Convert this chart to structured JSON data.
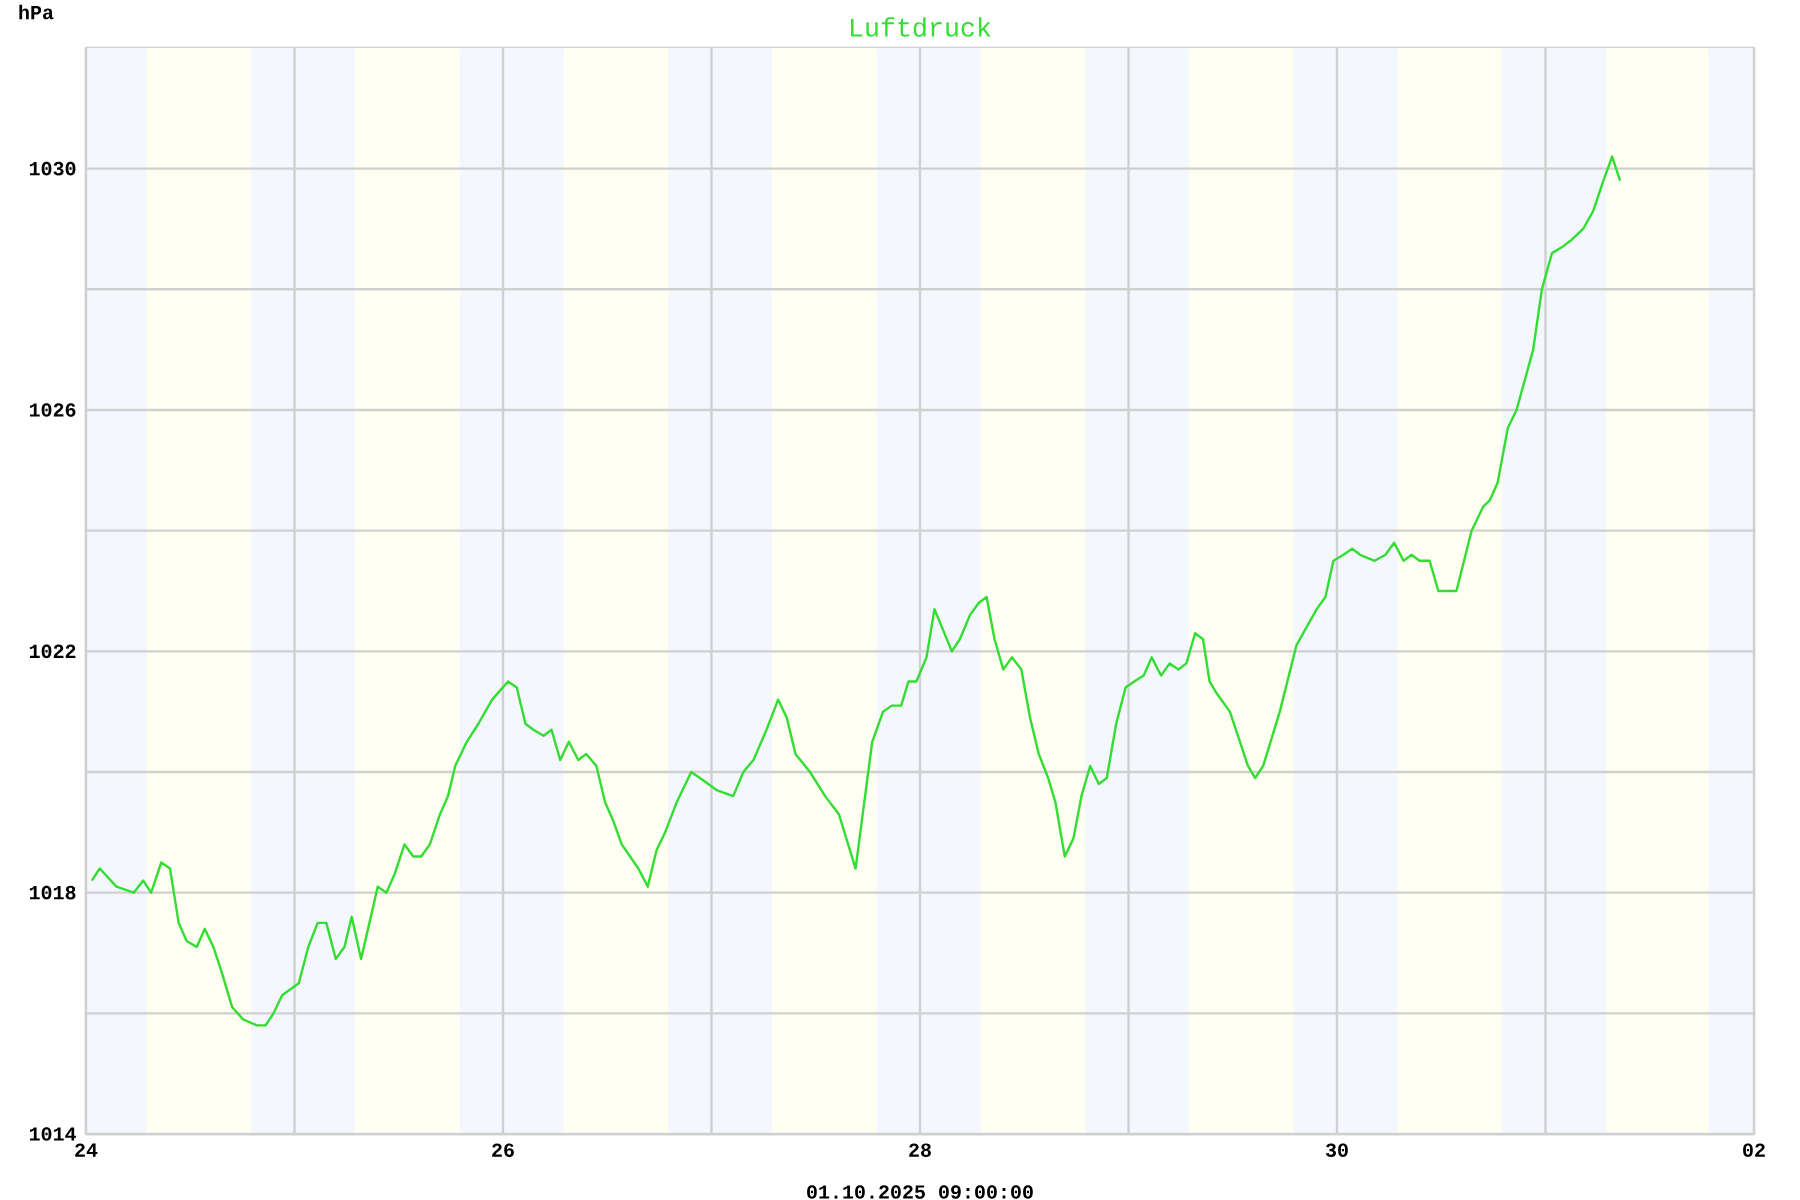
{
  "chart_data": {
    "type": "line",
    "title": "Luftdruck",
    "ylabel": "hPa",
    "color": "#33dd33",
    "line_style": "solid",
    "grid": true,
    "annotations": [
      "01.10.2025 09:00:00"
    ],
    "xlim": [
      "2025-09-24T00:00",
      "2025-10-02T00:00"
    ],
    "ylim": [
      1014,
      1032
    ],
    "xticks": [
      {
        "value": "2025-09-24",
        "label": "24"
      },
      {
        "value": "2025-09-25",
        "label": null
      },
      {
        "value": "2025-09-26",
        "label": "26"
      },
      {
        "value": "2025-09-27",
        "label": null
      },
      {
        "value": "2025-09-28",
        "label": "28"
      },
      {
        "value": "2025-09-29",
        "label": null
      },
      {
        "value": "2025-09-30",
        "label": "30"
      },
      {
        "value": "2025-10-01",
        "label": null
      },
      {
        "value": "2025-10-02",
        "label": "02"
      }
    ],
    "yticks": [
      1014,
      {
        "value": 1016,
        "label": null
      },
      1018,
      {
        "value": 1020,
        "label": null
      },
      1022,
      {
        "value": 1024,
        "label": null
      },
      1026,
      {
        "value": 1028,
        "label": null
      },
      1030
    ],
    "bands": [
      {
        "axis": "x",
        "from": "2025-09-24T00:00",
        "to": "2025-09-24T07:00",
        "color": "#f5f7ff"
      },
      {
        "axis": "x",
        "from": "2025-09-24T07:00",
        "to": "2025-09-24T19:00",
        "color": "#fffff2"
      },
      {
        "axis": "x",
        "from": "2025-09-24T19:00",
        "to": "2025-09-25T07:00",
        "color": "#f5f7ff"
      },
      {
        "axis": "x",
        "from": "2025-09-25T07:00",
        "to": "2025-09-25T19:00",
        "color": "#fffff2"
      },
      {
        "axis": "x",
        "from": "2025-09-25T19:00",
        "to": "2025-09-26T07:00",
        "color": "#f5f7ff"
      },
      {
        "axis": "x",
        "from": "2025-09-26T07:00",
        "to": "2025-09-26T19:00",
        "color": "#fffff2"
      },
      {
        "axis": "x",
        "from": "2025-09-26T19:00",
        "to": "2025-09-27T07:00",
        "color": "#f5f7ff"
      },
      {
        "axis": "x",
        "from": "2025-09-27T07:00",
        "to": "2025-09-27T19:00",
        "color": "#fffff2"
      },
      {
        "axis": "x",
        "from": "2025-09-27T19:00",
        "to": "2025-09-28T07:00",
        "color": "#f5f7ff"
      },
      {
        "axis": "x",
        "from": "2025-09-28T07:00",
        "to": "2025-09-28T19:00",
        "color": "#fffff2"
      },
      {
        "axis": "x",
        "from": "2025-09-28T19:00",
        "to": "2025-09-29T07:00",
        "color": "#f5f7ff"
      },
      {
        "axis": "x",
        "from": "2025-09-29T07:00",
        "to": "2025-09-29T19:00",
        "color": "#fffff2"
      },
      {
        "axis": "x",
        "from": "2025-09-29T19:00",
        "to": "2025-09-30T07:00",
        "color": "#f5f7ff"
      },
      {
        "axis": "x",
        "from": "2025-09-30T07:00",
        "to": "2025-09-30T19:00",
        "color": "#fffff2"
      },
      {
        "axis": "x",
        "from": "2025-09-30T19:00",
        "to": "2025-10-01T07:00",
        "color": "#f5f7ff"
      },
      {
        "axis": "x",
        "from": "2025-10-01T07:00",
        "to": "2025-10-01T18:45",
        "color": "#fffff2"
      },
      {
        "axis": "x",
        "from": "2025-10-01T18:45",
        "to": "2025-10-02T00:00",
        "color": "#f5f7ff"
      }
    ],
    "x": [
      "2025-09-24T00:40",
      "2025-09-24T01:35",
      "2025-09-24T03:30",
      "2025-09-24T05:30",
      "2025-09-24T06:35",
      "2025-09-24T07:30",
      "2025-09-24T08:40",
      "2025-09-24T09:40",
      "2025-09-24T10:40",
      "2025-09-24T11:35",
      "2025-09-24T12:45",
      "2025-09-24T13:40",
      "2025-09-24T14:40",
      "2025-09-24T15:35",
      "2025-09-24T16:50",
      "2025-09-24T18:05",
      "2025-09-24T19:40",
      "2025-09-24T20:40",
      "2025-09-24T21:35",
      "2025-09-24T22:35",
      "2025-09-25T00:30",
      "2025-09-25T01:35",
      "2025-09-25T02:40",
      "2025-09-25T03:40",
      "2025-09-25T04:45",
      "2025-09-25T05:45",
      "2025-09-25T06:35",
      "2025-09-25T07:40",
      "2025-09-25T09:35",
      "2025-09-25T10:35",
      "2025-09-25T11:30",
      "2025-09-25T12:40",
      "2025-09-25T13:40",
      "2025-09-25T14:35",
      "2025-09-25T15:35",
      "2025-09-25T16:45",
      "2025-09-25T17:40",
      "2025-09-25T18:30",
      "2025-09-25T19:50",
      "2025-09-25T21:10",
      "2025-09-25T22:45",
      "2025-09-26T00:35",
      "2025-09-26T01:35",
      "2025-09-26T02:35",
      "2025-09-26T03:30",
      "2025-09-26T04:40",
      "2025-09-26T05:35",
      "2025-09-26T06:35",
      "2025-09-26T07:35",
      "2025-09-26T08:40",
      "2025-09-26T09:35",
      "2025-09-26T10:45",
      "2025-09-26T11:45",
      "2025-09-26T12:40",
      "2025-09-26T13:40",
      "2025-09-26T15:35",
      "2025-09-26T16:40",
      "2025-09-26T17:40",
      "2025-09-26T18:40",
      "2025-09-26T20:00",
      "2025-09-26T21:40",
      "2025-09-26T22:40",
      "2025-09-27T00:35",
      "2025-09-27T02:30",
      "2025-09-27T03:40",
      "2025-09-27T04:50",
      "2025-09-27T06:20",
      "2025-09-27T07:40",
      "2025-09-27T08:40",
      "2025-09-27T09:40",
      "2025-09-27T11:20",
      "2025-09-27T13:05",
      "2025-09-27T14:40",
      "2025-09-27T16:35",
      "2025-09-27T18:30",
      "2025-09-27T19:45",
      "2025-09-27T20:45",
      "2025-09-27T21:50",
      "2025-09-27T22:40",
      "2025-09-27T23:35",
      "2025-09-28T00:45",
      "2025-09-28T01:40",
      "2025-09-28T03:40",
      "2025-09-28T04:35",
      "2025-09-28T05:45",
      "2025-09-28T06:45",
      "2025-09-28T07:40",
      "2025-09-28T08:35",
      "2025-09-28T09:35",
      "2025-09-28T10:35",
      "2025-09-28T11:40",
      "2025-09-28T12:40",
      "2025-09-28T13:40",
      "2025-09-28T14:45",
      "2025-09-28T15:35",
      "2025-09-28T16:40",
      "2025-09-28T17:40",
      "2025-09-28T18:35",
      "2025-09-28T19:35",
      "2025-09-28T20:35",
      "2025-09-28T21:30",
      "2025-09-28T22:35",
      "2025-09-28T23:40",
      "2025-09-29T00:40",
      "2025-09-29T01:45",
      "2025-09-29T02:40",
      "2025-09-29T03:45",
      "2025-09-29T04:45",
      "2025-09-29T05:45",
      "2025-09-29T06:40",
      "2025-09-29T07:40",
      "2025-09-29T08:35",
      "2025-09-29T09:20",
      "2025-09-29T10:10",
      "2025-09-29T11:40",
      "2025-09-29T12:50",
      "2025-09-29T13:45",
      "2025-09-29T14:35",
      "2025-09-29T15:30",
      "2025-09-29T17:25",
      "2025-09-29T19:20",
      "2025-09-29T20:30",
      "2025-09-29T21:40",
      "2025-09-29T22:40",
      "2025-09-29T23:35",
      "2025-09-30T00:45",
      "2025-09-30T01:45",
      "2025-09-30T02:40",
      "2025-09-30T04:20",
      "2025-09-30T05:35",
      "2025-09-30T06:35",
      "2025-09-30T07:40",
      "2025-09-30T08:35",
      "2025-09-30T09:30",
      "2025-09-30T10:40",
      "2025-09-30T11:40",
      "2025-09-30T12:45",
      "2025-09-30T13:45",
      "2025-09-30T15:30",
      "2025-09-30T16:50",
      "2025-09-30T17:35",
      "2025-09-30T18:30",
      "2025-09-30T19:40",
      "2025-09-30T20:40",
      "2025-09-30T22:35",
      "2025-09-30T23:35",
      "2025-10-01T00:45",
      "2025-10-01T01:55",
      "2025-10-01T02:50",
      "2025-10-01T04:20",
      "2025-10-01T05:30",
      "2025-10-01T06:40",
      "2025-10-01T07:40",
      "2025-10-01T08:35"
    ],
    "values": [
      1018.2,
      1018.4,
      1018.1,
      1018.0,
      1018.2,
      1018.0,
      1018.5,
      1018.4,
      1017.5,
      1017.2,
      1017.1,
      1017.4,
      1017.1,
      1016.7,
      1016.1,
      1015.9,
      1015.8,
      1015.8,
      1016.0,
      1016.3,
      1016.5,
      1017.1,
      1017.5,
      1017.5,
      1016.9,
      1017.1,
      1017.6,
      1016.9,
      1018.1,
      1018.0,
      1018.3,
      1018.8,
      1018.6,
      1018.6,
      1018.8,
      1019.3,
      1019.6,
      1020.1,
      1020.5,
      1020.8,
      1021.2,
      1021.5,
      1021.4,
      1020.8,
      1020.7,
      1020.6,
      1020.7,
      1020.2,
      1020.5,
      1020.2,
      1020.3,
      1020.1,
      1019.5,
      1019.2,
      1018.8,
      1018.4,
      1018.1,
      1018.7,
      1019.0,
      1019.5,
      1020.0,
      1019.9,
      1019.7,
      1019.6,
      1020.0,
      1020.2,
      1020.7,
      1021.2,
      1020.9,
      1020.3,
      1020.0,
      1019.6,
      1019.3,
      1018.4,
      1020.5,
      1021.0,
      1021.1,
      1021.1,
      1021.5,
      1021.5,
      1021.9,
      1022.7,
      1022.0,
      1022.2,
      1022.6,
      1022.8,
      1022.9,
      1022.2,
      1021.7,
      1021.9,
      1021.7,
      1020.9,
      1020.3,
      1019.9,
      1019.5,
      1018.6,
      1018.9,
      1019.6,
      1020.1,
      1019.8,
      1019.9,
      1020.8,
      1021.4,
      1021.5,
      1021.6,
      1021.9,
      1021.6,
      1021.8,
      1021.7,
      1021.8,
      1022.3,
      1022.2,
      1021.5,
      1021.3,
      1021.0,
      1020.5,
      1020.1,
      1019.9,
      1020.1,
      1021.0,
      1022.1,
      1022.4,
      1022.7,
      1022.9,
      1023.5,
      1023.6,
      1023.7,
      1023.6,
      1023.5,
      1023.6,
      1023.8,
      1023.5,
      1023.6,
      1023.5,
      1023.5,
      1023.0,
      1023.0,
      1023.0,
      1024.0,
      1024.4,
      1024.5,
      1024.8,
      1025.7,
      1026.0,
      1027.0,
      1028.0,
      1028.6,
      1028.7,
      1028.8,
      1029.0,
      1029.3,
      1029.8,
      1030.2,
      1029.8
    ]
  }
}
